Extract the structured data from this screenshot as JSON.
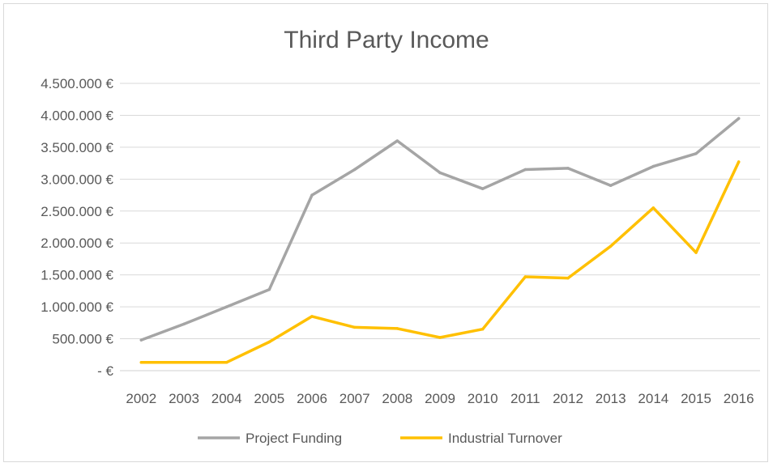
{
  "chart_data": {
    "type": "line",
    "title": "Third Party Income",
    "xlabel": "",
    "ylabel": "",
    "categories": [
      "2002",
      "2003",
      "2004",
      "2005",
      "2006",
      "2007",
      "2008",
      "2009",
      "2010",
      "2011",
      "2012",
      "2013",
      "2014",
      "2015",
      "2016"
    ],
    "y_tick_labels": [
      "- €",
      "500.000 €",
      "1.000.000 €",
      "1.500.000 €",
      "2.000.000 €",
      "2.500.000 €",
      "3.000.000 €",
      "3.500.000 €",
      "4.000.000 €",
      "4.500.000 €"
    ],
    "ylim": [
      0,
      4500000
    ],
    "grid": true,
    "legend_position": "bottom",
    "series": [
      {
        "name": "Project Funding",
        "color": "#a5a5a5",
        "values": [
          480000,
          730000,
          1000000,
          1270000,
          2750000,
          3150000,
          3600000,
          3100000,
          2850000,
          3150000,
          3170000,
          2900000,
          3200000,
          3400000,
          3950000
        ]
      },
      {
        "name": "Industrial Turnover",
        "color": "#ffc000",
        "values": [
          130000,
          130000,
          130000,
          450000,
          850000,
          680000,
          660000,
          520000,
          650000,
          1470000,
          1450000,
          1950000,
          2550000,
          1850000,
          3270000
        ]
      }
    ]
  }
}
